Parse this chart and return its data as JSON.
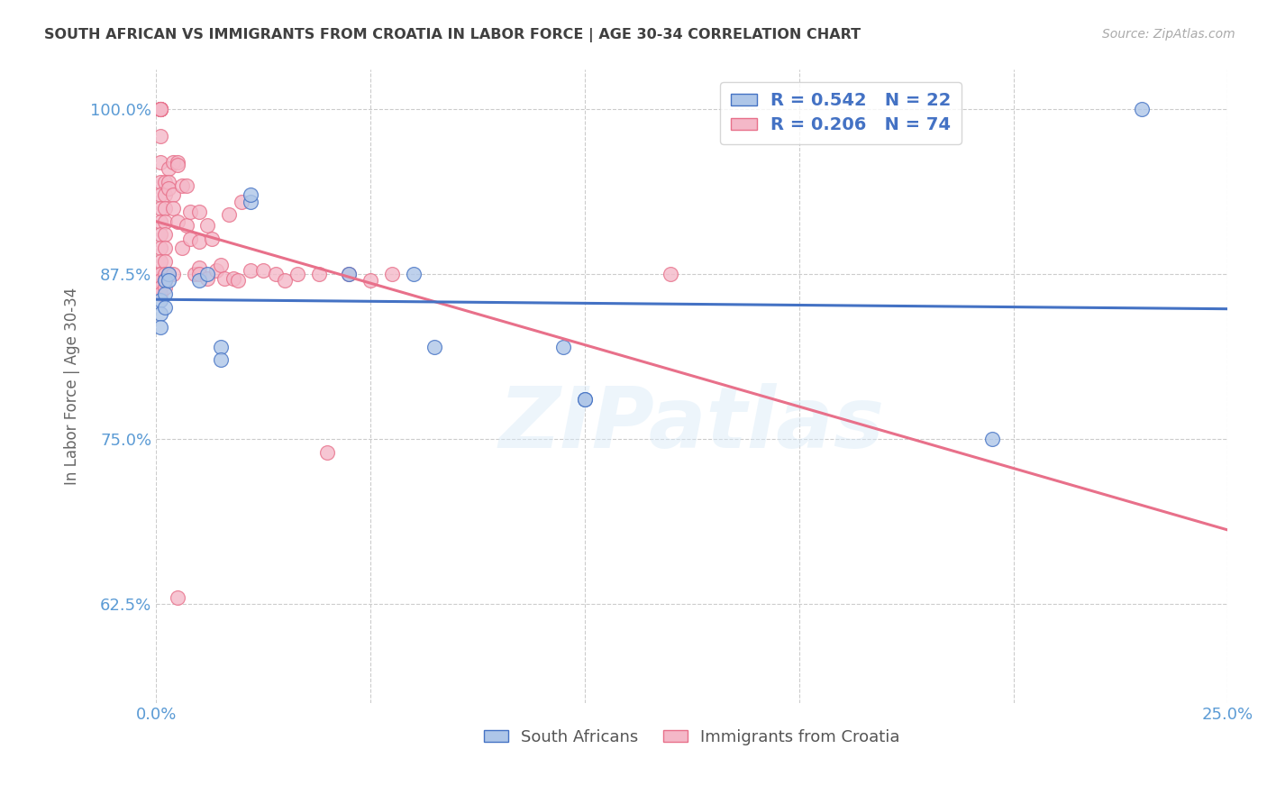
{
  "title": "SOUTH AFRICAN VS IMMIGRANTS FROM CROATIA IN LABOR FORCE | AGE 30-34 CORRELATION CHART",
  "source": "Source: ZipAtlas.com",
  "ylabel": "In Labor Force | Age 30-34",
  "xlim": [
    0.0,
    0.25
  ],
  "ylim": [
    0.55,
    1.03
  ],
  "xticks": [
    0.0,
    0.05,
    0.1,
    0.15,
    0.2,
    0.25
  ],
  "xtick_labels": [
    "0.0%",
    "",
    "",
    "",
    "",
    "25.0%"
  ],
  "yticks": [
    0.625,
    0.75,
    0.875,
    1.0
  ],
  "ytick_labels": [
    "62.5%",
    "75.0%",
    "87.5%",
    "100.0%"
  ],
  "blue_R": 0.542,
  "blue_N": 22,
  "pink_R": 0.206,
  "pink_N": 74,
  "legend_label_blue": "South Africans",
  "legend_label_pink": "Immigrants from Croatia",
  "blue_facecolor": "#aec6e8",
  "pink_facecolor": "#f4b8c8",
  "blue_edgecolor": "#4472c4",
  "pink_edgecolor": "#e8708a",
  "blue_line_color": "#4472c4",
  "pink_line_color": "#e8708a",
  "title_color": "#404040",
  "axis_tick_color": "#5b9bd5",
  "watermark": "ZIPatlas",
  "grid_color": "#cccccc",
  "bg_color": "#ffffff",
  "blue_x": [
    0.001,
    0.001,
    0.001,
    0.002,
    0.002,
    0.002,
    0.003,
    0.003,
    0.01,
    0.012,
    0.015,
    0.015,
    0.022,
    0.022,
    0.045,
    0.06,
    0.065,
    0.095,
    0.1,
    0.1,
    0.195,
    0.23
  ],
  "blue_y": [
    0.855,
    0.845,
    0.835,
    0.87,
    0.86,
    0.85,
    0.875,
    0.87,
    0.87,
    0.875,
    0.82,
    0.81,
    0.93,
    0.935,
    0.875,
    0.875,
    0.82,
    0.82,
    0.78,
    0.78,
    0.75,
    1.0
  ],
  "pink_x": [
    0.001,
    0.001,
    0.001,
    0.001,
    0.001,
    0.001,
    0.001,
    0.001,
    0.001,
    0.001,
    0.001,
    0.001,
    0.001,
    0.001,
    0.001,
    0.001,
    0.001,
    0.001,
    0.001,
    0.001,
    0.002,
    0.002,
    0.002,
    0.002,
    0.002,
    0.002,
    0.002,
    0.002,
    0.002,
    0.002,
    0.003,
    0.003,
    0.003,
    0.003,
    0.004,
    0.004,
    0.004,
    0.004,
    0.005,
    0.005,
    0.005,
    0.006,
    0.006,
    0.007,
    0.007,
    0.008,
    0.008,
    0.009,
    0.01,
    0.01,
    0.01,
    0.01,
    0.012,
    0.012,
    0.013,
    0.014,
    0.015,
    0.016,
    0.017,
    0.018,
    0.019,
    0.02,
    0.022,
    0.025,
    0.028,
    0.03,
    0.033,
    0.038,
    0.04,
    0.045,
    0.05,
    0.055,
    0.12,
    0.005
  ],
  "pink_y": [
    1.0,
    1.0,
    1.0,
    1.0,
    1.0,
    1.0,
    0.98,
    0.96,
    0.945,
    0.935,
    0.925,
    0.915,
    0.905,
    0.895,
    0.885,
    0.875,
    0.875,
    0.87,
    0.865,
    0.86,
    0.945,
    0.935,
    0.925,
    0.915,
    0.905,
    0.895,
    0.885,
    0.875,
    0.87,
    0.865,
    0.955,
    0.945,
    0.94,
    0.875,
    0.96,
    0.935,
    0.925,
    0.875,
    0.96,
    0.958,
    0.915,
    0.942,
    0.895,
    0.942,
    0.912,
    0.922,
    0.902,
    0.875,
    0.88,
    0.922,
    0.9,
    0.875,
    0.912,
    0.872,
    0.902,
    0.878,
    0.882,
    0.872,
    0.92,
    0.872,
    0.87,
    0.93,
    0.878,
    0.878,
    0.875,
    0.87,
    0.875,
    0.875,
    0.74,
    0.875,
    0.87,
    0.875,
    0.875,
    0.63
  ]
}
